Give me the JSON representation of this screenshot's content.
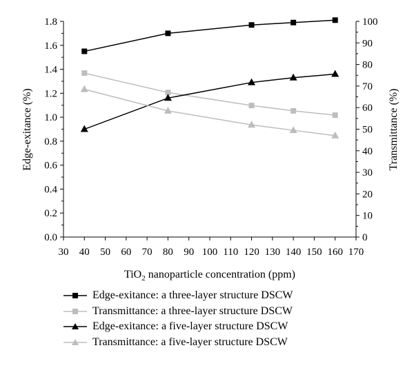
{
  "chart_data": {
    "type": "line",
    "x": [
      40,
      80,
      120,
      140,
      160
    ],
    "xlabel_parts": [
      "TiO",
      "2",
      " nanoparticle concentration (ppm)"
    ],
    "xlim": [
      30,
      170
    ],
    "xticks": [
      "30",
      "40",
      "50",
      "60",
      "70",
      "80",
      "90",
      "100",
      "110",
      "120",
      "130",
      "140",
      "150",
      "160",
      "170"
    ],
    "ylabel": "Edge-exitance (%)",
    "ylim": [
      0,
      1.8
    ],
    "yticks": [
      "0.0",
      "0.2",
      "0.4",
      "0.6",
      "0.8",
      "1.0",
      "1.2",
      "1.4",
      "1.6",
      "1.8"
    ],
    "y2label": "Transmittance (%)",
    "y2lim": [
      0,
      100
    ],
    "y2ticks": [
      "0",
      "10",
      "20",
      "30",
      "40",
      "50",
      "60",
      "70",
      "80",
      "90",
      "100"
    ],
    "grid": false,
    "legend_position": "bottom",
    "series": [
      {
        "name": "Edge-exitance: a three-layer structure DSCW",
        "axis": "left",
        "marker": "square",
        "color": "#000000",
        "values": [
          1.55,
          1.7,
          1.77,
          1.79,
          1.81
        ]
      },
      {
        "name": "Transmittance: a three-layer structure DSCW",
        "axis": "right",
        "marker": "square",
        "color": "#bdbdbd",
        "values": [
          76,
          67,
          61,
          58.5,
          56.5
        ]
      },
      {
        "name": "Edge-exitance: a five-layer structure DSCW",
        "axis": "left",
        "marker": "triangle",
        "color": "#000000",
        "values": [
          0.9,
          1.16,
          1.29,
          1.33,
          1.36
        ]
      },
      {
        "name": "Transmittance: a five-layer structure DSCW",
        "axis": "right",
        "marker": "triangle",
        "color": "#bdbdbd",
        "values": [
          68.5,
          58.5,
          52,
          49.5,
          47
        ]
      }
    ]
  }
}
